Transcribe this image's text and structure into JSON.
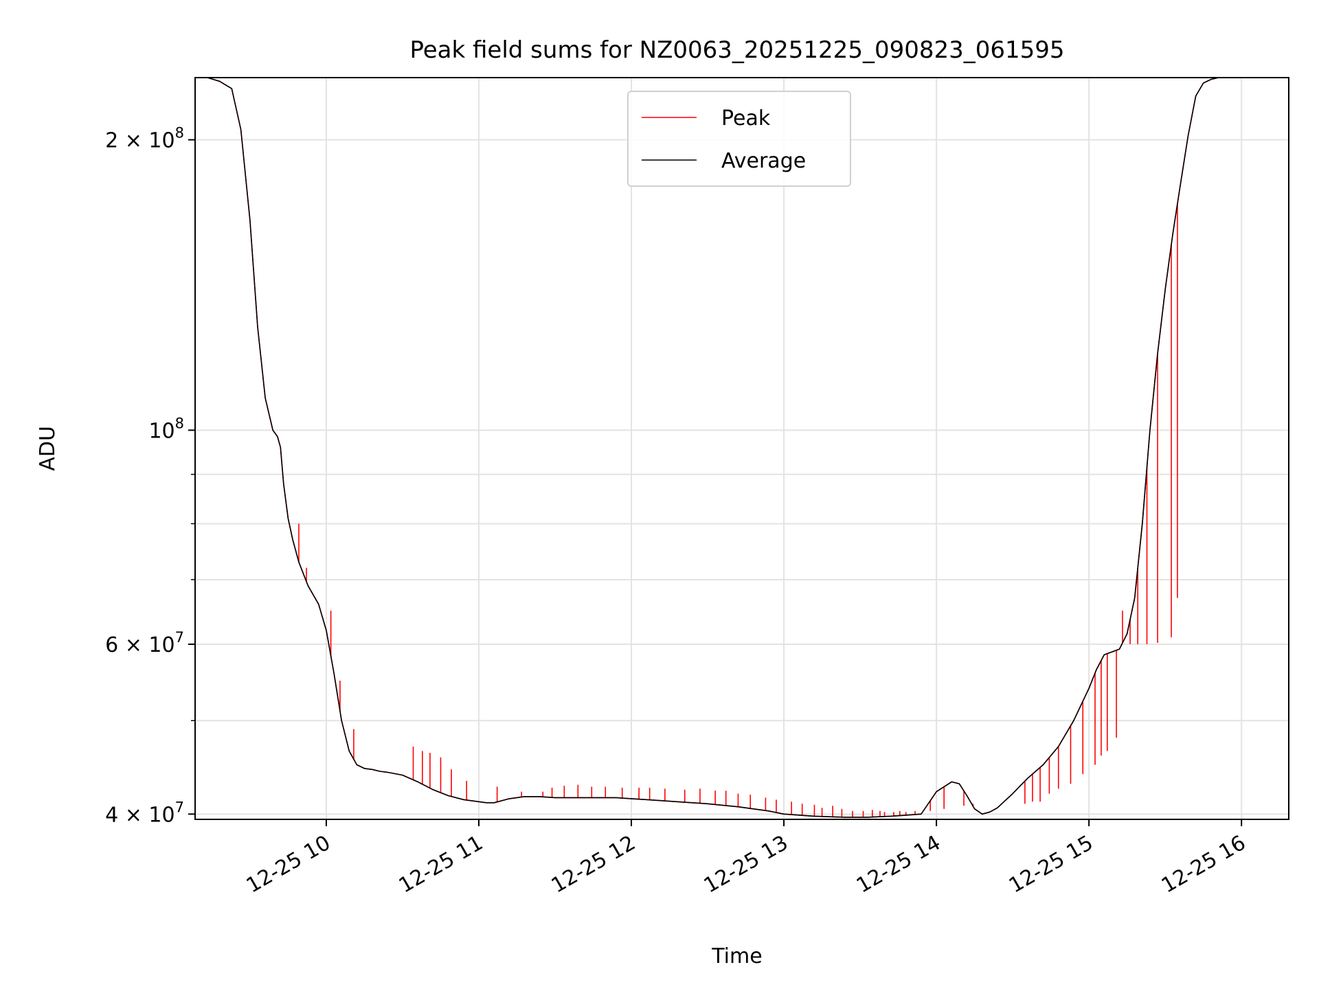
{
  "chart_data": {
    "type": "line",
    "title": "Peak field sums for NZ0063_20251225_090823_061595",
    "xlabel": "Time",
    "ylabel": "ADU",
    "yscale": "log",
    "x_units": "hours",
    "xlim": [
      9.14,
      16.31
    ],
    "ylim": [
      39500000,
      232000000
    ],
    "grid": true,
    "legend_position": "upper-center",
    "x_ticks": [
      {
        "value": 10,
        "label": "12-25 10"
      },
      {
        "value": 11,
        "label": "12-25 11"
      },
      {
        "value": 12,
        "label": "12-25 12"
      },
      {
        "value": 13,
        "label": "12-25 13"
      },
      {
        "value": 14,
        "label": "12-25 14"
      },
      {
        "value": 15,
        "label": "12-25 15"
      },
      {
        "value": 16,
        "label": "12-25 16"
      }
    ],
    "y_major_ticks": [
      {
        "value": 40000000,
        "base": "4",
        "exp": "7"
      },
      {
        "value": 60000000,
        "base": "6",
        "exp": "7"
      },
      {
        "value": 100000000,
        "base": "",
        "exp": "8"
      },
      {
        "value": 200000000,
        "base": "2",
        "exp": "8"
      }
    ],
    "y_minor_ticks": [
      50000000,
      70000000,
      80000000,
      90000000
    ],
    "series": [
      {
        "name": "Average",
        "color": "#000000",
        "x": [
          9.14,
          9.22,
          9.3,
          9.38,
          9.44,
          9.5,
          9.55,
          9.6,
          9.65,
          9.68,
          9.7,
          9.72,
          9.75,
          9.78,
          9.82,
          9.88,
          9.95,
          10.0,
          10.05,
          10.1,
          10.15,
          10.2,
          10.25,
          10.3,
          10.35,
          10.4,
          10.5,
          10.6,
          10.7,
          10.8,
          10.9,
          10.95,
          11.0,
          11.05,
          11.1,
          11.2,
          11.3,
          11.4,
          11.5,
          11.6,
          11.7,
          11.8,
          11.9,
          12.0,
          12.1,
          12.2,
          12.3,
          12.5,
          12.7,
          12.9,
          13.0,
          13.2,
          13.4,
          13.55,
          13.7,
          13.8,
          13.9,
          14.0,
          14.1,
          14.15,
          14.2,
          14.25,
          14.3,
          14.35,
          14.4,
          14.45,
          14.5,
          14.55,
          14.6,
          14.7,
          14.8,
          14.9,
          15.0,
          15.05,
          15.1,
          15.15,
          15.2,
          15.25,
          15.3,
          15.35,
          15.4,
          15.45,
          15.5,
          15.55,
          15.6,
          15.65,
          15.7,
          15.75,
          15.8,
          15.85,
          15.9,
          15.95,
          16.0,
          16.05,
          16.1,
          16.2,
          16.31
        ],
        "y": [
          232000000,
          232000000,
          230000000,
          226000000,
          205000000,
          165000000,
          128000000,
          108000000,
          100000000,
          98500000,
          96000000,
          88000000,
          81000000,
          77000000,
          73000000,
          69000000,
          66000000,
          62000000,
          56000000,
          50000000,
          46500000,
          45000000,
          44600000,
          44500000,
          44300000,
          44200000,
          43900000,
          43200000,
          42400000,
          41800000,
          41400000,
          41300000,
          41200000,
          41100000,
          41100000,
          41500000,
          41700000,
          41700000,
          41600000,
          41600000,
          41600000,
          41600000,
          41600000,
          41500000,
          41400000,
          41300000,
          41200000,
          41000000,
          40700000,
          40300000,
          40000000,
          39800000,
          39700000,
          39700000,
          39800000,
          39900000,
          40000000,
          42200000,
          43200000,
          43000000,
          41800000,
          40500000,
          40000000,
          40200000,
          40600000,
          41300000,
          42000000,
          42800000,
          43600000,
          45000000,
          47000000,
          50000000,
          54000000,
          56500000,
          58500000,
          58900000,
          59300000,
          61500000,
          67000000,
          80000000,
          100000000,
          120000000,
          140000000,
          160000000,
          180000000,
          202000000,
          222000000,
          229000000,
          231000000,
          232000000,
          232000000,
          232000000,
          232000000,
          232000000,
          232000000,
          232000000,
          232000000
        ]
      },
      {
        "name": "Peak",
        "color": "#ff0000",
        "spikes_x": [
          9.82,
          9.87,
          10.03,
          10.09,
          10.18,
          10.57,
          10.63,
          10.68,
          10.75,
          10.82,
          10.92,
          11.12,
          11.28,
          11.42,
          11.48,
          11.56,
          11.65,
          11.74,
          11.83,
          11.94,
          12.05,
          12.12,
          12.22,
          12.35,
          12.45,
          12.55,
          12.62,
          12.7,
          12.78,
          12.88,
          12.95,
          13.05,
          13.12,
          13.2,
          13.25,
          13.32,
          13.38,
          13.45,
          13.52,
          13.58,
          13.63,
          13.66,
          13.72,
          13.76,
          13.8,
          13.86,
          13.91,
          13.96,
          14.05,
          14.18,
          14.24,
          14.58,
          14.63,
          14.68,
          14.74,
          14.8,
          14.88,
          14.96,
          15.04,
          15.08,
          15.12,
          15.18,
          15.22,
          15.27,
          15.32,
          15.38,
          15.45,
          15.54,
          15.58
        ],
        "spikes_y": [
          80000000,
          72000000,
          65000000,
          55000000,
          49000000,
          47000000,
          46500000,
          46300000,
          45800000,
          44500000,
          43300000,
          42700000,
          42200000,
          42200000,
          42600000,
          42800000,
          42900000,
          42700000,
          42700000,
          42600000,
          42600000,
          42600000,
          42500000,
          42400000,
          42500000,
          42300000,
          42300000,
          42000000,
          41900000,
          41600000,
          41400000,
          41200000,
          41000000,
          40900000,
          40600000,
          40800000,
          40500000,
          40300000,
          40300000,
          40400000,
          40300000,
          40200000,
          40200000,
          40300000,
          40200000,
          40300000,
          40200000,
          40300000,
          40500000,
          40800000,
          41000000,
          41000000,
          41200000,
          41200000,
          42000000,
          42500000,
          43000000,
          44000000,
          45000000,
          46000000,
          46500000,
          48000000,
          65000000,
          60000000,
          60000000,
          60000000,
          60200000,
          61000000,
          67000000
        ]
      }
    ]
  }
}
